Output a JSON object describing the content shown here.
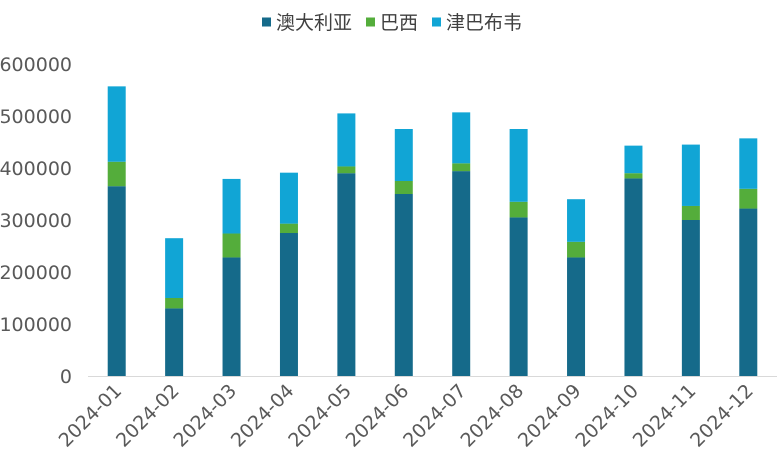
{
  "chart_data": {
    "type": "bar",
    "stacked": true,
    "title": "",
    "xlabel": "",
    "ylabel": "",
    "ylim": [
      0,
      600000
    ],
    "yticks": [
      "0",
      "100000",
      "200000",
      "300000",
      "400000",
      "500000",
      "600000"
    ],
    "ytick_values": [
      0,
      100000,
      200000,
      300000,
      400000,
      500000,
      600000
    ],
    "categories": [
      "2024-01",
      "2024-02",
      "2024-03",
      "2024-04",
      "2024-05",
      "2024-06",
      "2024-07",
      "2024-08",
      "2024-09",
      "2024-10",
      "2024-11",
      "2024-12"
    ],
    "series": [
      {
        "name": "澳大利亚",
        "color": "#156a8a",
        "values": [
          365000,
          130000,
          228000,
          275000,
          390000,
          350000,
          394000,
          305000,
          228000,
          380000,
          300000,
          322000
        ]
      },
      {
        "name": "巴西",
        "color": "#54ad3b",
        "values": [
          47000,
          20000,
          46000,
          18000,
          13000,
          25000,
          15000,
          30000,
          30000,
          10000,
          27000,
          38000
        ]
      },
      {
        "name": "津巴布韦",
        "color": "#11a5d5",
        "values": [
          145000,
          115000,
          105000,
          98000,
          102000,
          100000,
          98000,
          140000,
          82000,
          53000,
          118000,
          97000
        ]
      }
    ],
    "grid": false,
    "legend_position": "top"
  }
}
